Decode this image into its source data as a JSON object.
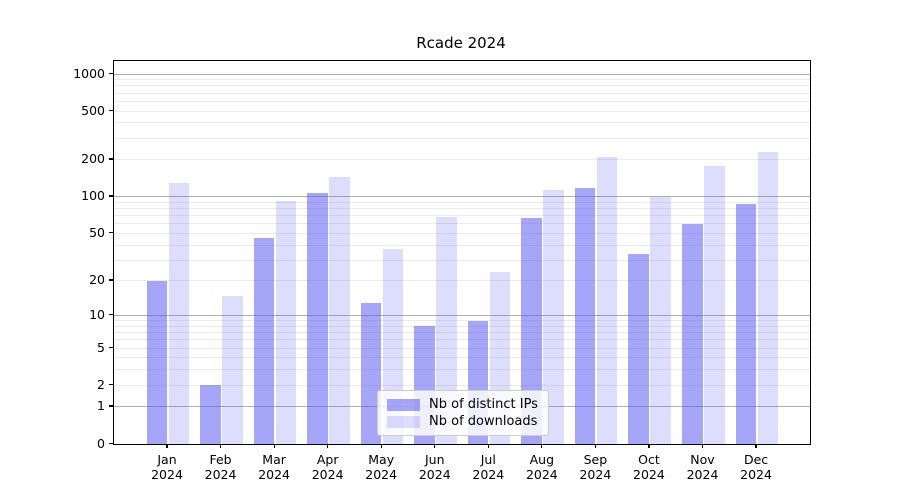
{
  "title": "Rcade 2024",
  "chart_data": {
    "type": "bar",
    "title": "Rcade 2024",
    "yscale": "log(v+1)",
    "ylim": [
      0,
      1000
    ],
    "yticks": [
      0,
      1,
      2,
      5,
      10,
      20,
      50,
      100,
      200,
      500,
      1000
    ],
    "grid": {
      "major": [
        1,
        10,
        100,
        1000
      ],
      "minor": [
        2,
        3,
        4,
        5,
        6,
        7,
        8,
        9,
        20,
        30,
        40,
        50,
        60,
        70,
        80,
        90,
        200,
        300,
        400,
        500,
        600,
        700,
        800,
        900
      ]
    },
    "categories": [
      [
        "Jan",
        "2024"
      ],
      [
        "Feb",
        "2024"
      ],
      [
        "Mar",
        "2024"
      ],
      [
        "Apr",
        "2024"
      ],
      [
        "May",
        "2024"
      ],
      [
        "Jun",
        "2024"
      ],
      [
        "Jul",
        "2024"
      ],
      [
        "Aug",
        "2024"
      ],
      [
        "Sep",
        "2024"
      ],
      [
        "Oct",
        "2024"
      ],
      [
        "Nov",
        "2024"
      ],
      [
        "Dec",
        "2024"
      ]
    ],
    "series": [
      {
        "name": "Nb of distinct IPs",
        "color": "rgba(85, 85, 243, 0.52)",
        "values": [
          20,
          2,
          46,
          107,
          13,
          8,
          9,
          67,
          118,
          34,
          60,
          88
        ]
      },
      {
        "name": "Nb of downloads",
        "color": "rgba(85, 85, 243, 0.20)",
        "values": [
          130,
          15,
          92,
          145,
          37,
          68,
          24,
          113,
          210,
          100,
          178,
          232
        ]
      }
    ],
    "legend": {
      "position": "lower-center",
      "items": [
        "Nb of distinct IPs",
        "Nb of downloads"
      ]
    },
    "colors": {
      "grid_major": "#b0b0b0",
      "grid_minor": "#ebebeb",
      "axis": "#000000",
      "background": "#ffffff"
    }
  }
}
